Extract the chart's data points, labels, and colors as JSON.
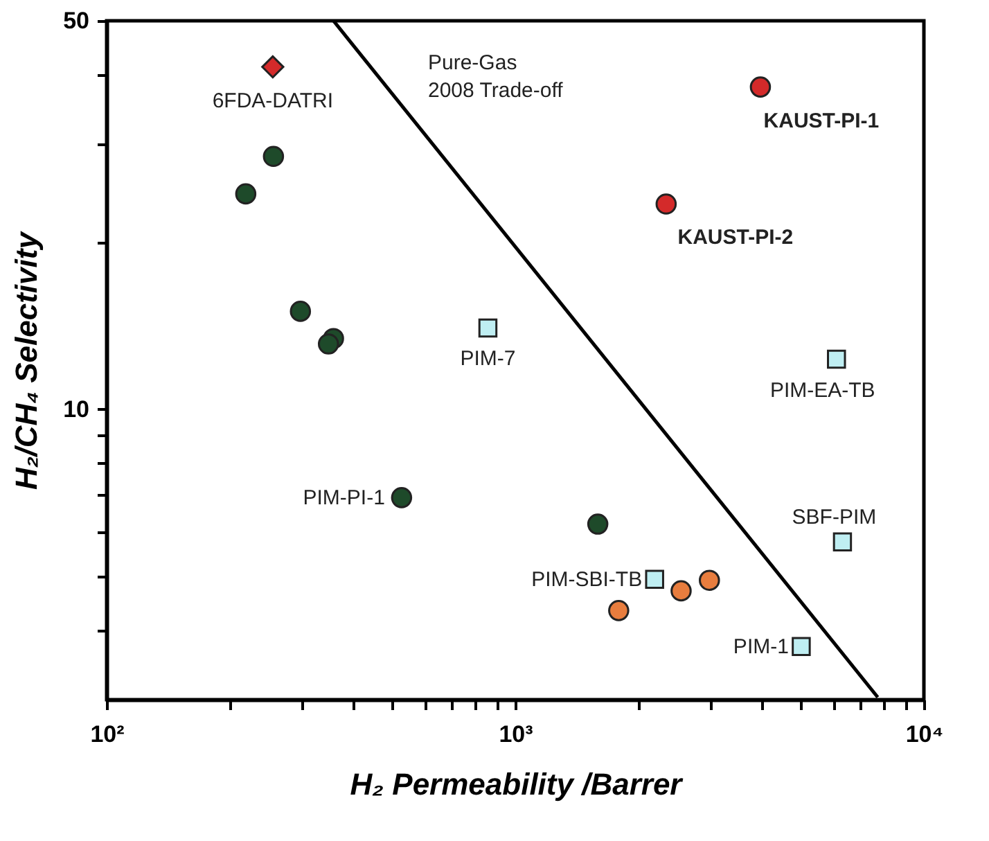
{
  "chart_data": {
    "type": "scatter",
    "xlabel": "H₂ Permeability /Barrer",
    "ylabel": "H₂/CH₄ Selectivity",
    "log": "xy",
    "xlim": [
      100,
      10000
    ],
    "ylim": [
      3,
      50
    ],
    "xticks": [
      {
        "value": 100,
        "label": "10²"
      },
      {
        "value": 200,
        "label": null
      },
      {
        "value": 300,
        "label": null
      },
      {
        "value": 400,
        "label": null
      },
      {
        "value": 500,
        "label": null
      },
      {
        "value": 600,
        "label": null
      },
      {
        "value": 700,
        "label": null
      },
      {
        "value": 800,
        "label": null
      },
      {
        "value": 900,
        "label": null
      },
      {
        "value": 1000,
        "label": "10³"
      },
      {
        "value": 2000,
        "label": null
      },
      {
        "value": 3000,
        "label": null
      },
      {
        "value": 4000,
        "label": null
      },
      {
        "value": 5000,
        "label": null
      },
      {
        "value": 6000,
        "label": null
      },
      {
        "value": 7000,
        "label": null
      },
      {
        "value": 8000,
        "label": null
      },
      {
        "value": 9000,
        "label": null
      },
      {
        "value": 10000,
        "label": "10⁴"
      }
    ],
    "yticks": [
      {
        "value": 4,
        "label": null
      },
      {
        "value": 5,
        "label": null
      },
      {
        "value": 6,
        "label": null
      },
      {
        "value": 7,
        "label": null
      },
      {
        "value": 8,
        "label": null
      },
      {
        "value": 9,
        "label": null
      },
      10,
      {
        "value": 20,
        "label": null
      },
      {
        "value": 30,
        "label": null
      },
      {
        "value": 40,
        "label": null
      },
      50
    ],
    "grid": false,
    "series": [
      {
        "type": "line",
        "color": "#000000",
        "marker": "none",
        "line_style": "solid",
        "x": [
          359,
          7710
        ],
        "values": [
          50,
          3.03
        ]
      },
      {
        "color": "#d42a2a",
        "marker": "diamond",
        "x": [
          255
        ],
        "values": [
          41.3
        ]
      },
      {
        "color": "#d42a2a",
        "marker": "circle",
        "x": [
          3980,
          2340
        ],
        "values": [
          38.0,
          23.4
        ]
      },
      {
        "color": "#1e4a2a",
        "marker": "circle",
        "x": [
          256,
          219,
          298,
          359,
          349,
          527,
          1592
        ],
        "values": [
          28.5,
          24.4,
          15.0,
          13.4,
          13.1,
          6.93,
          6.21
        ]
      },
      {
        "color": "#e87d3e",
        "marker": "circle",
        "x": [
          2546,
          2986,
          1791
        ],
        "values": [
          4.71,
          4.92,
          4.34
        ]
      },
      {
        "color": "#bfeef2",
        "marker": "square",
        "x": [
          857,
          6110,
          6320,
          2193,
          5010
        ],
        "values": [
          14.0,
          12.3,
          5.77,
          4.94,
          3.74
        ]
      }
    ],
    "annotations": [
      {
        "text": "6FDA-DATRI",
        "x": 255,
        "y": 41.3
      },
      {
        "text": "KAUST-PI-1",
        "x": 3980,
        "y": 38.0
      },
      {
        "text": "KAUST-PI-2",
        "x": 2340,
        "y": 23.4
      },
      {
        "text": "PIM-7",
        "x": 857,
        "y": 14.0
      },
      {
        "text": "PIM-EA-TB",
        "x": 6110,
        "y": 12.3
      },
      {
        "text": "PIM-PI-1",
        "x": 527,
        "y": 6.93
      },
      {
        "text": "SBF-PIM",
        "x": 6320,
        "y": 5.77
      },
      {
        "text": "PIM-SBI-TB",
        "x": 2193,
        "y": 4.94
      },
      {
        "text": "PIM-1",
        "x": 5010,
        "y": 3.74
      },
      "Pure-Gas\n2008 Trade-off"
    ]
  }
}
